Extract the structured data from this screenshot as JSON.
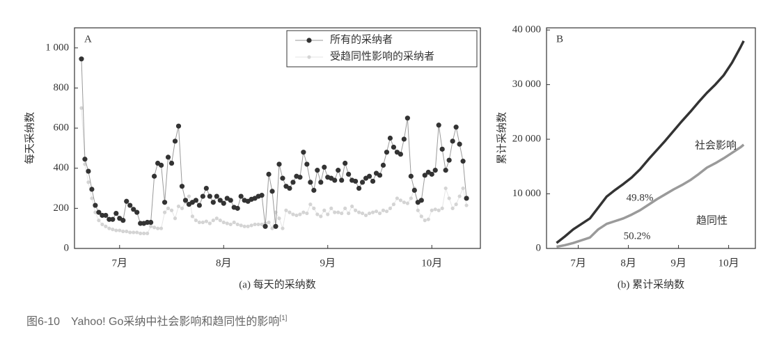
{
  "chart_data": [
    {
      "type": "line",
      "panel_label": "A",
      "ylabel": "每天采纳数",
      "xlabel": "(a) 每天的采纳数",
      "xlim": [
        0,
        117
      ],
      "ylim": [
        0,
        1100
      ],
      "xticks": [
        {
          "value": 13,
          "label": "7月"
        },
        {
          "value": 43,
          "label": "8月"
        },
        {
          "value": 73,
          "label": "9月"
        },
        {
          "value": 103,
          "label": "10月"
        }
      ],
      "yticks": [
        0,
        200,
        400,
        600,
        800,
        {
          "value": 1000,
          "label": "1 000"
        }
      ],
      "legend": "upper right",
      "markers": true,
      "x": [
        2,
        3,
        4,
        5,
        6,
        7,
        8,
        9,
        10,
        11,
        12,
        13,
        14,
        15,
        16,
        17,
        18,
        19,
        20,
        21,
        22,
        23,
        24,
        25,
        26,
        27,
        28,
        29,
        30,
        31,
        32,
        33,
        34,
        35,
        36,
        37,
        38,
        39,
        40,
        41,
        42,
        43,
        44,
        45,
        46,
        47,
        48,
        49,
        50,
        51,
        52,
        53,
        54,
        55,
        56,
        57,
        58,
        59,
        60,
        61,
        62,
        63,
        64,
        65,
        66,
        67,
        68,
        69,
        70,
        71,
        72,
        73,
        74,
        75,
        76,
        77,
        78,
        79,
        80,
        81,
        82,
        83,
        84,
        85,
        86,
        87,
        88,
        89,
        90,
        91,
        92,
        93,
        94,
        95,
        96,
        97,
        98,
        99,
        100,
        101,
        102,
        103,
        104,
        105,
        106,
        107,
        108,
        109,
        110,
        111,
        112,
        113
      ],
      "series": [
        {
          "name": "所有的采纳者",
          "color": "#333333",
          "line_color": "#9a9a9a",
          "values": [
            945,
            445,
            385,
            295,
            215,
            180,
            165,
            165,
            145,
            145,
            175,
            150,
            140,
            235,
            215,
            195,
            180,
            125,
            125,
            130,
            130,
            360,
            425,
            415,
            230,
            455,
            425,
            535,
            610,
            310,
            240,
            220,
            230,
            240,
            215,
            260,
            300,
            260,
            230,
            260,
            240,
            225,
            250,
            240,
            205,
            200,
            260,
            240,
            235,
            245,
            250,
            260,
            265,
            110,
            370,
            285,
            110,
            420,
            350,
            310,
            300,
            330,
            360,
            355,
            480,
            420,
            330,
            290,
            390,
            330,
            405,
            355,
            350,
            340,
            390,
            340,
            425,
            370,
            340,
            335,
            300,
            330,
            350,
            360,
            335,
            375,
            365,
            415,
            480,
            550,
            505,
            480,
            470,
            545,
            650,
            360,
            290,
            230,
            240,
            365,
            380,
            370,
            390,
            615,
            495,
            390,
            440,
            535,
            605,
            520,
            435,
            250
          ]
        },
        {
          "name": "受趋同性影响的采纳者",
          "color": "#d4d4d4",
          "line_color": "#e6e6e6",
          "values": [
            700,
            420,
            330,
            250,
            180,
            140,
            120,
            110,
            100,
            95,
            90,
            90,
            85,
            85,
            80,
            80,
            80,
            75,
            75,
            75,
            110,
            105,
            100,
            100,
            180,
            200,
            190,
            150,
            210,
            200,
            230,
            260,
            160,
            140,
            130,
            130,
            135,
            125,
            140,
            150,
            140,
            130,
            125,
            120,
            130,
            120,
            115,
            110,
            110,
            115,
            120,
            120,
            120,
            125,
            130,
            100,
            180,
            150,
            100,
            190,
            180,
            170,
            165,
            170,
            180,
            175,
            220,
            200,
            170,
            160,
            190,
            170,
            200,
            180,
            180,
            175,
            200,
            175,
            210,
            190,
            180,
            175,
            165,
            175,
            180,
            185,
            175,
            190,
            185,
            200,
            220,
            250,
            240,
            230,
            225,
            250,
            300,
            190,
            160,
            140,
            145,
            190,
            195,
            190,
            200,
            300,
            250,
            200,
            220,
            260,
            300,
            215
          ]
        }
      ]
    },
    {
      "type": "line",
      "panel_label": "B",
      "ylabel": "累计采纳数",
      "xlabel": "(b) 累计采纳数",
      "xlim": [
        -6,
        119
      ],
      "ylim": [
        0,
        40400
      ],
      "xticks": [
        {
          "value": 13,
          "label": "7月"
        },
        {
          "value": 43,
          "label": "8月"
        },
        {
          "value": 73,
          "label": "9月"
        },
        {
          "value": 103,
          "label": "10月"
        }
      ],
      "yticks": [
        0,
        {
          "value": 10000,
          "label": "10 000"
        },
        {
          "value": 20000,
          "label": "20 000"
        },
        {
          "value": 30000,
          "label": "30 000"
        },
        {
          "value": 40000,
          "label": "40 000"
        }
      ],
      "legend": "inline",
      "markers": false,
      "x": [
        0,
        5,
        10,
        15,
        20,
        25,
        30,
        35,
        40,
        45,
        50,
        55,
        60,
        65,
        70,
        75,
        80,
        85,
        90,
        95,
        100,
        105,
        110,
        112
      ],
      "series": [
        {
          "name": "社会影响",
          "color": "#333333",
          "line_color": "#333333",
          "values": [
            1000,
            2200,
            3500,
            4500,
            5500,
            7500,
            9500,
            10700,
            11800,
            13000,
            14500,
            16300,
            18000,
            19700,
            21500,
            23300,
            25000,
            26800,
            28500,
            30000,
            31700,
            34000,
            36800,
            38000
          ]
        },
        {
          "name": "趋同性",
          "color": "#9a9a9a",
          "line_color": "#9a9a9a",
          "values": [
            300,
            600,
            1000,
            1500,
            2000,
            3500,
            4500,
            5000,
            5500,
            6200,
            7000,
            8000,
            9000,
            9900,
            10800,
            11600,
            12500,
            13600,
            14800,
            15600,
            16500,
            17500,
            18500,
            19000
          ]
        }
      ],
      "annotations": [
        "49.8%",
        "50.2%"
      ]
    }
  ],
  "caption": "图6-10　Yahoo! Go采纳中社会影响和趋同性的影响",
  "caption_ref": "[1]"
}
